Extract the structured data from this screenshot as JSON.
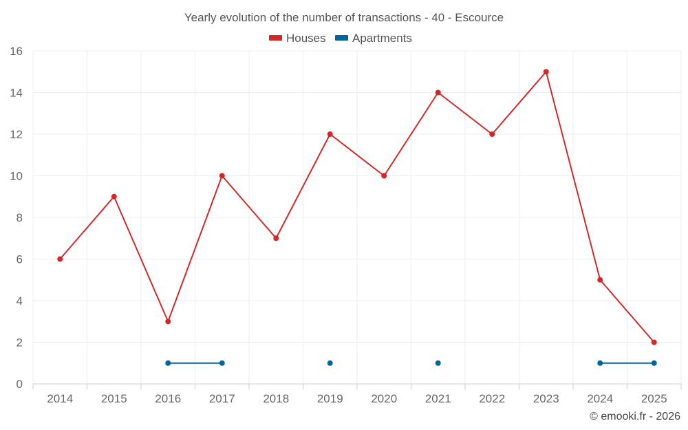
{
  "chart_data": {
    "type": "line",
    "title": "Yearly evolution of the number of transactions - 40 - Escource",
    "categories": [
      "2014",
      "2015",
      "2016",
      "2017",
      "2018",
      "2019",
      "2020",
      "2021",
      "2022",
      "2023",
      "2024",
      "2025"
    ],
    "ylim": [
      0,
      16
    ],
    "yticks": [
      0,
      2,
      4,
      6,
      8,
      10,
      12,
      14,
      16
    ],
    "grid": true,
    "legend_position": "top-center",
    "series": [
      {
        "name": "Houses",
        "color": "#d62728",
        "values": [
          6,
          9,
          3,
          10,
          7,
          12,
          10,
          14,
          12,
          15,
          5,
          2
        ]
      },
      {
        "name": "Apartments",
        "color": "#006699",
        "values": [
          null,
          null,
          1,
          1,
          null,
          1,
          null,
          1,
          null,
          null,
          1,
          1
        ]
      }
    ],
    "credit": "© emooki.fr - 2026"
  }
}
